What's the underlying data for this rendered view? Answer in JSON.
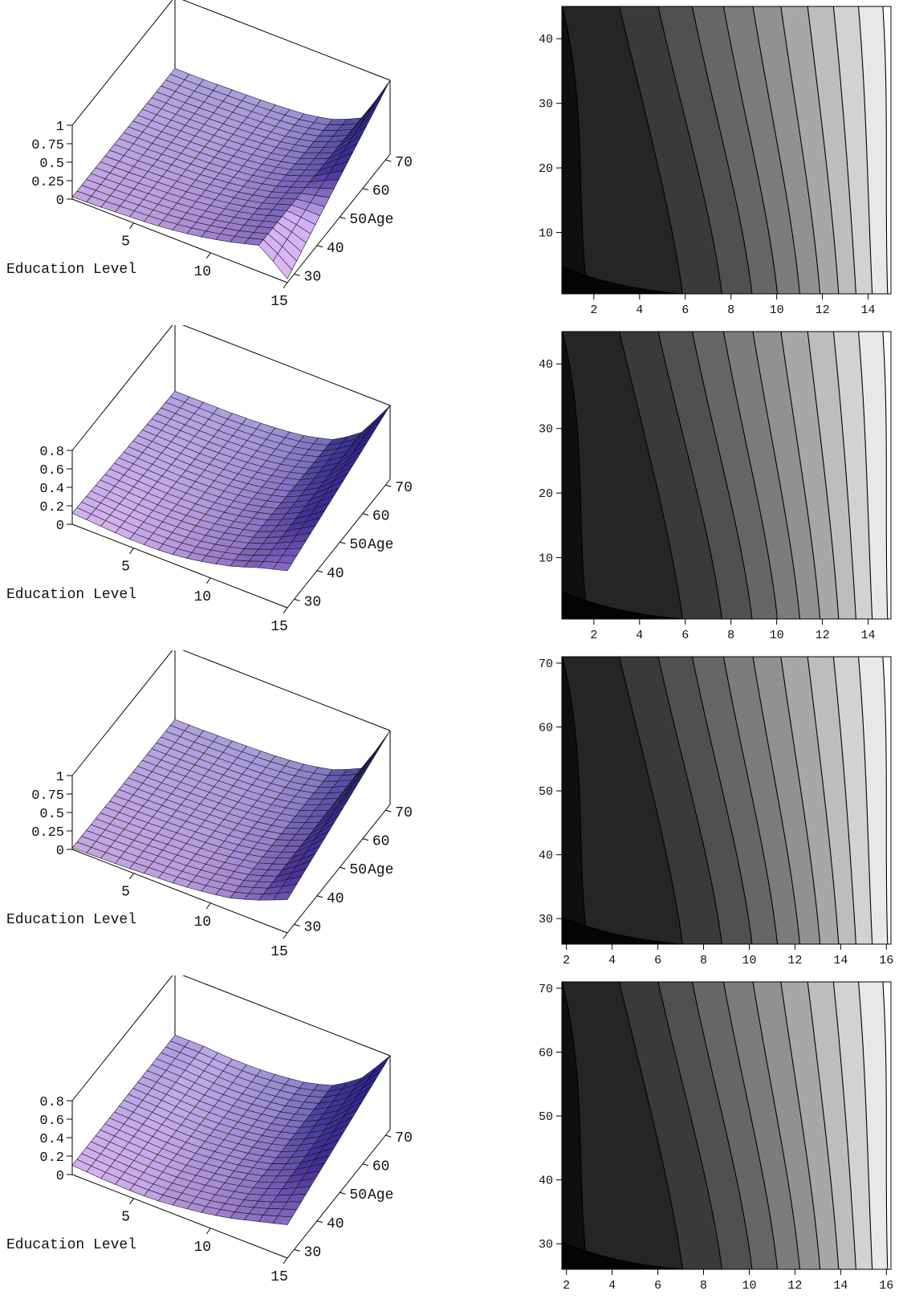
{
  "chart_data": [
    {
      "type": "surface3d",
      "xlabel": "Education Level",
      "ylabel": "Age",
      "x_ticks": [
        "5",
        "10",
        "15"
      ],
      "y_ticks": [
        "30",
        "40",
        "50",
        "60",
        "70"
      ],
      "z_ticks": [
        "0",
        "0.25",
        "0.5",
        "0.75",
        "1"
      ],
      "xlim": [
        1,
        15
      ],
      "ylim": [
        27,
        72
      ],
      "zlim": [
        0,
        1
      ],
      "surface": {
        "x": [
          1,
          15
        ],
        "y": [
          27,
          72
        ],
        "z_front": [
          0.03,
          0.04,
          0.06,
          0.08,
          0.12,
          0.18,
          0.26,
          0.36,
          0.05
        ],
        "z_back": [
          0.03,
          0.03,
          0.04,
          0.05,
          0.07,
          0.1,
          0.18,
          0.35,
          1.0
        ]
      }
    },
    {
      "type": "contour",
      "x_ticks": [
        "2",
        "4",
        "6",
        "8",
        "10",
        "12",
        "14"
      ],
      "y_ticks": [
        "10",
        "20",
        "30",
        "40"
      ],
      "xlim": [
        0.6,
        15
      ],
      "ylim": [
        0.5,
        45
      ],
      "levels": 11
    },
    {
      "type": "surface3d",
      "xlabel": "Education Level",
      "ylabel": "Age",
      "x_ticks": [
        "5",
        "10",
        "15"
      ],
      "y_ticks": [
        "30",
        "40",
        "50",
        "60",
        "70"
      ],
      "z_ticks": [
        "0",
        "0.2",
        "0.4",
        "0.6",
        "0.8"
      ],
      "xlim": [
        1,
        15
      ],
      "ylim": [
        27,
        72
      ],
      "zlim": [
        0,
        0.8
      ],
      "surface": {
        "x": [
          1,
          15
        ],
        "y": [
          27,
          72
        ],
        "z_front": [
          0.12,
          0.1,
          0.08,
          0.08,
          0.1,
          0.15,
          0.22,
          0.32,
          0.4
        ],
        "z_back": [
          0.05,
          0.05,
          0.05,
          0.06,
          0.08,
          0.12,
          0.2,
          0.4,
          0.8
        ]
      }
    },
    {
      "type": "contour",
      "x_ticks": [
        "2",
        "4",
        "6",
        "8",
        "10",
        "12",
        "14"
      ],
      "y_ticks": [
        "10",
        "20",
        "30",
        "40"
      ],
      "xlim": [
        0.6,
        15
      ],
      "ylim": [
        0.5,
        45
      ],
      "levels": 11
    },
    {
      "type": "surface3d",
      "xlabel": "Education Level",
      "ylabel": "Age",
      "x_ticks": [
        "5",
        "10",
        "15"
      ],
      "y_ticks": [
        "30",
        "40",
        "50",
        "60",
        "70"
      ],
      "z_ticks": [
        "0",
        "0.25",
        "0.5",
        "0.75",
        "1"
      ],
      "xlim": [
        1,
        15
      ],
      "ylim": [
        27,
        72
      ],
      "zlim": [
        0,
        1
      ],
      "surface": {
        "x": [
          1,
          15
        ],
        "y": [
          27,
          72
        ],
        "z_front": [
          0.02,
          0.03,
          0.04,
          0.06,
          0.08,
          0.12,
          0.18,
          0.3,
          0.45
        ],
        "z_back": [
          0.02,
          0.02,
          0.03,
          0.04,
          0.06,
          0.1,
          0.18,
          0.35,
          1.0
        ]
      }
    },
    {
      "type": "contour",
      "x_ticks": [
        "2",
        "4",
        "6",
        "8",
        "10",
        "12",
        "14",
        "16"
      ],
      "y_ticks": [
        "30",
        "40",
        "50",
        "60",
        "70"
      ],
      "xlim": [
        1.8,
        16.2
      ],
      "ylim": [
        26,
        71
      ],
      "levels": 11
    },
    {
      "type": "surface3d",
      "xlabel": "Education Level",
      "ylabel": "Age",
      "x_ticks": [
        "5",
        "10",
        "15"
      ],
      "y_ticks": [
        "30",
        "40",
        "50",
        "60",
        "70"
      ],
      "z_ticks": [
        "0",
        "0.2",
        "0.4",
        "0.6",
        "0.8"
      ],
      "xlim": [
        1,
        15
      ],
      "ylim": [
        27,
        72
      ],
      "zlim": [
        0,
        0.8
      ],
      "surface": {
        "x": [
          1,
          15
        ],
        "y": [
          27,
          72
        ],
        "z_front": [
          0.1,
          0.08,
          0.07,
          0.07,
          0.1,
          0.14,
          0.2,
          0.28,
          0.36
        ],
        "z_back": [
          0.12,
          0.12,
          0.1,
          0.1,
          0.12,
          0.16,
          0.25,
          0.45,
          0.8
        ]
      }
    },
    {
      "type": "contour",
      "x_ticks": [
        "2",
        "4",
        "6",
        "8",
        "10",
        "12",
        "14",
        "16"
      ],
      "y_ticks": [
        "30",
        "40",
        "50",
        "60",
        "70"
      ],
      "xlim": [
        1.8,
        16.2
      ],
      "ylim": [
        26,
        71
      ],
      "levels": 11
    }
  ]
}
